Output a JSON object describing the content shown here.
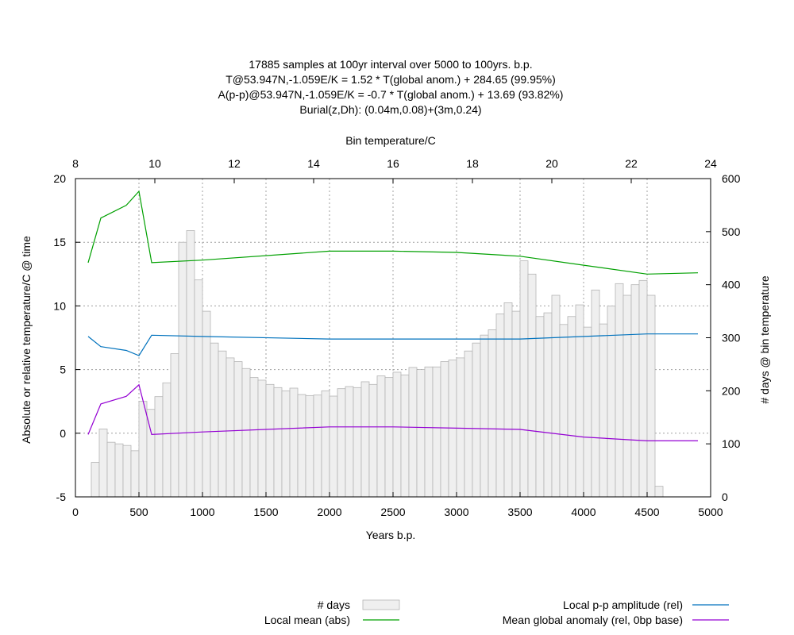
{
  "chart_data": {
    "type": "bar+line",
    "title_lines": [
      "17885 samples at 100yr interval over 5000 to 100yrs. b.p.",
      "T@53.947N,-1.059E/K = 1.52 * T(global anom.) + 284.65 (99.95%)",
      "A(p-p)@53.947N,-1.059E/K = -0.7 * T(global anom.) + 13.69 (93.82%)",
      "Burial(z,Dh): (0.04m,0.08)+(3m,0.24)"
    ],
    "x_bottom": {
      "label": "Years b.p.",
      "min": 0,
      "max": 5000,
      "ticks": [
        "0",
        "500",
        "1000",
        "1500",
        "2000",
        "2500",
        "3000",
        "3500",
        "4000",
        "4500",
        "5000"
      ]
    },
    "x_top": {
      "label": "Bin temperature/C",
      "min": 8,
      "max": 24,
      "ticks": [
        "8",
        "10",
        "12",
        "14",
        "16",
        "18",
        "20",
        "22",
        "24"
      ]
    },
    "y_left": {
      "label": "Absolute or relative temperature/C @ time",
      "min": -5,
      "max": 20,
      "ticks": [
        "-5",
        "0",
        "5",
        "10",
        "15",
        "20"
      ]
    },
    "y_right": {
      "label": "# days @ bin temperature",
      "min": 0,
      "max": 600,
      "ticks": [
        "0",
        "100",
        "200",
        "300",
        "400",
        "500",
        "600"
      ]
    },
    "grid": true,
    "legend": [
      {
        "name": "# days",
        "kind": "box"
      },
      {
        "name": "Local mean (abs)",
        "kind": "line",
        "color": "#00a000"
      },
      {
        "name": "Local p-p amplitude (rel)",
        "kind": "line",
        "color": "#0072bd"
      },
      {
        "name": "Mean global anomaly (rel, 0bp base)",
        "kind": "line",
        "color": "#9400d3"
      }
    ],
    "histogram": {
      "axis": "top-x/right-y",
      "bin_width": 0.2,
      "bars": [
        [
          8.5,
          65
        ],
        [
          8.7,
          128
        ],
        [
          8.9,
          103
        ],
        [
          9.1,
          100
        ],
        [
          9.3,
          97
        ],
        [
          9.5,
          87
        ],
        [
          9.7,
          180
        ],
        [
          9.9,
          165
        ],
        [
          10.1,
          189
        ],
        [
          10.3,
          215
        ],
        [
          10.5,
          270
        ],
        [
          10.7,
          480
        ],
        [
          10.9,
          502
        ],
        [
          11.1,
          409
        ],
        [
          11.3,
          350
        ],
        [
          11.5,
          290
        ],
        [
          11.7,
          275
        ],
        [
          11.9,
          262
        ],
        [
          12.1,
          255
        ],
        [
          12.3,
          242
        ],
        [
          12.5,
          225
        ],
        [
          12.7,
          220
        ],
        [
          12.9,
          212
        ],
        [
          13.1,
          206
        ],
        [
          13.3,
          200
        ],
        [
          13.5,
          205
        ],
        [
          13.7,
          193
        ],
        [
          13.9,
          191
        ],
        [
          14.1,
          192
        ],
        [
          14.3,
          200
        ],
        [
          14.5,
          190
        ],
        [
          14.7,
          204
        ],
        [
          14.9,
          208
        ],
        [
          15.1,
          206
        ],
        [
          15.3,
          217
        ],
        [
          15.5,
          212
        ],
        [
          15.7,
          228
        ],
        [
          15.9,
          225
        ],
        [
          16.1,
          235
        ],
        [
          16.3,
          230
        ],
        [
          16.5,
          244
        ],
        [
          16.7,
          240
        ],
        [
          16.9,
          245
        ],
        [
          17.1,
          245
        ],
        [
          17.3,
          255
        ],
        [
          17.5,
          258
        ],
        [
          17.7,
          262
        ],
        [
          17.9,
          275
        ],
        [
          18.1,
          290
        ],
        [
          18.3,
          305
        ],
        [
          18.5,
          315
        ],
        [
          18.7,
          345
        ],
        [
          18.9,
          366
        ],
        [
          19.1,
          350
        ],
        [
          19.3,
          445
        ],
        [
          19.5,
          420
        ],
        [
          19.7,
          340
        ],
        [
          19.9,
          347
        ],
        [
          20.1,
          380
        ],
        [
          20.3,
          325
        ],
        [
          20.5,
          340
        ],
        [
          20.7,
          362
        ],
        [
          20.9,
          320
        ],
        [
          21.1,
          390
        ],
        [
          21.3,
          326
        ],
        [
          21.5,
          360
        ],
        [
          21.7,
          402
        ],
        [
          21.9,
          380
        ],
        [
          22.1,
          400
        ],
        [
          22.3,
          408
        ],
        [
          22.5,
          380
        ],
        [
          22.7,
          20
        ]
      ]
    },
    "series": [
      {
        "name": "Local mean (abs)",
        "color": "#00a000",
        "x": [
          100,
          200,
          400,
          500,
          600,
          1000,
          2000,
          2500,
          3000,
          3500,
          4000,
          4500,
          4900
        ],
        "y": [
          13.4,
          16.9,
          17.9,
          19.0,
          13.4,
          13.6,
          14.3,
          14.3,
          14.2,
          13.9,
          13.2,
          12.5,
          12.6
        ]
      },
      {
        "name": "Local p-p amplitude (rel)",
        "color": "#0072bd",
        "x": [
          100,
          200,
          400,
          500,
          600,
          1000,
          2000,
          2500,
          3000,
          3500,
          4000,
          4500,
          4900
        ],
        "y": [
          7.6,
          6.8,
          6.5,
          6.1,
          7.7,
          7.6,
          7.4,
          7.4,
          7.4,
          7.4,
          7.6,
          7.8,
          7.8
        ]
      },
      {
        "name": "Mean global anomaly (rel, 0bp base)",
        "color": "#9400d3",
        "x": [
          100,
          200,
          400,
          500,
          600,
          1000,
          2000,
          2500,
          3000,
          3500,
          4000,
          4500,
          4900
        ],
        "y": [
          -0.1,
          2.3,
          2.9,
          3.8,
          -0.1,
          0.1,
          0.5,
          0.5,
          0.4,
          0.3,
          -0.3,
          -0.6,
          -0.6
        ]
      }
    ]
  }
}
